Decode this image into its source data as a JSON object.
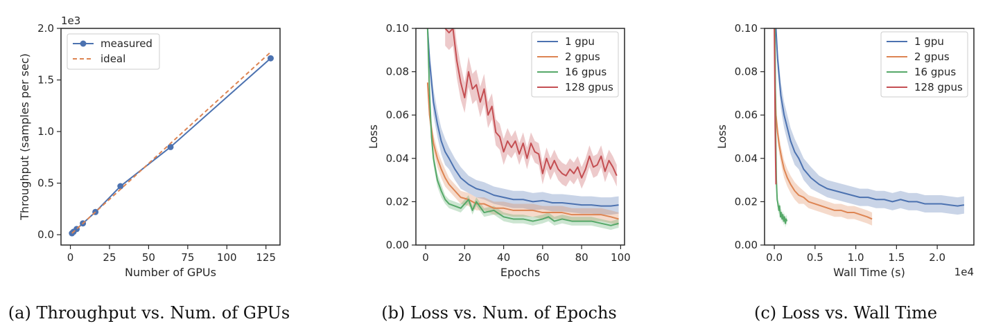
{
  "chart_data": [
    {
      "type": "line",
      "caption": "(a) Throughput vs. Num. of GPUs",
      "xlabel": "Number of GPUs",
      "ylabel": "Throughput (samples per sec)",
      "y_offset_label": "1e3",
      "xlim": [
        -6,
        134
      ],
      "ylim": [
        -0.1,
        2.0
      ],
      "xticks": [
        0,
        25,
        50,
        75,
        100,
        125
      ],
      "yticks": [
        0.0,
        0.5,
        1.0,
        1.5,
        2.0
      ],
      "ytick_labels": [
        "0.0",
        "0.5",
        "1.0",
        "1.5",
        "2.0"
      ],
      "legend_position": "top-left",
      "series": [
        {
          "name": "measured",
          "color": "#4c72b0",
          "style": "solid",
          "markers": true,
          "x": [
            1,
            2,
            4,
            8,
            16,
            32,
            64,
            128
          ],
          "y": [
            0.014,
            0.028,
            0.055,
            0.11,
            0.22,
            0.47,
            0.85,
            1.71
          ]
        },
        {
          "name": "ideal",
          "color": "#dd8452",
          "style": "dashed",
          "markers": false,
          "x": [
            1,
            2,
            4,
            8,
            16,
            32,
            64,
            128
          ],
          "y": [
            0.0138,
            0.0276,
            0.0552,
            0.11,
            0.22,
            0.44,
            0.885,
            1.77
          ]
        }
      ]
    },
    {
      "type": "line",
      "caption": "(b) Loss vs. Num. of Epochs",
      "xlabel": "Epochs",
      "ylabel": "Loss",
      "xlim": [
        -5,
        102
      ],
      "ylim": [
        0.0,
        0.1
      ],
      "xticks": [
        0,
        20,
        40,
        60,
        80,
        100
      ],
      "yticks": [
        0.0,
        0.02,
        0.04,
        0.06,
        0.08,
        0.1
      ],
      "ytick_labels": [
        "0.00",
        "0.02",
        "0.04",
        "0.06",
        "0.08",
        "0.10"
      ],
      "legend_position": "top-right",
      "series": [
        {
          "name": "1 gpu",
          "color": "#4c72b0",
          "x": [
            1,
            2,
            4,
            6,
            8,
            10,
            12,
            15,
            18,
            22,
            26,
            30,
            35,
            40,
            45,
            50,
            55,
            60,
            65,
            70,
            75,
            80,
            85,
            90,
            95,
            99
          ],
          "y": [
            0.1,
            0.085,
            0.066,
            0.056,
            0.048,
            0.043,
            0.04,
            0.035,
            0.031,
            0.028,
            0.026,
            0.025,
            0.023,
            0.022,
            0.021,
            0.021,
            0.02,
            0.0205,
            0.0195,
            0.0195,
            0.019,
            0.0185,
            0.0185,
            0.018,
            0.018,
            0.0185
          ],
          "band": [
            0.004,
            0.005,
            0.006,
            0.006,
            0.006,
            0.006,
            0.005,
            0.005,
            0.005,
            0.004,
            0.004,
            0.004,
            0.004,
            0.004,
            0.004,
            0.004,
            0.004,
            0.004,
            0.004,
            0.004,
            0.004,
            0.004,
            0.004,
            0.004,
            0.004,
            0.004
          ]
        },
        {
          "name": "2 gpus",
          "color": "#dd8452",
          "x": [
            1,
            2,
            4,
            6,
            8,
            10,
            12,
            15,
            18,
            22,
            26,
            30,
            35,
            40,
            45,
            50,
            55,
            60,
            65,
            70,
            75,
            80,
            85,
            90,
            95,
            99
          ],
          "y": [
            0.075,
            0.06,
            0.047,
            0.04,
            0.035,
            0.031,
            0.028,
            0.025,
            0.022,
            0.021,
            0.019,
            0.019,
            0.017,
            0.017,
            0.016,
            0.016,
            0.016,
            0.015,
            0.015,
            0.015,
            0.014,
            0.014,
            0.014,
            0.014,
            0.013,
            0.012
          ],
          "band": [
            0.004,
            0.004,
            0.004,
            0.004,
            0.004,
            0.004,
            0.003,
            0.003,
            0.003,
            0.003,
            0.003,
            0.003,
            0.003,
            0.003,
            0.003,
            0.003,
            0.003,
            0.003,
            0.003,
            0.003,
            0.003,
            0.003,
            0.003,
            0.003,
            0.003,
            0.003
          ]
        },
        {
          "name": "16 gpus",
          "color": "#55a868",
          "x": [
            1,
            2,
            3,
            4,
            6,
            8,
            10,
            12,
            15,
            18,
            20,
            22,
            24,
            26,
            30,
            35,
            40,
            45,
            50,
            55,
            60,
            63,
            66,
            70,
            75,
            80,
            85,
            90,
            95,
            99
          ],
          "y": [
            0.1,
            0.07,
            0.05,
            0.04,
            0.03,
            0.025,
            0.021,
            0.019,
            0.018,
            0.017,
            0.019,
            0.021,
            0.016,
            0.02,
            0.015,
            0.016,
            0.013,
            0.012,
            0.012,
            0.011,
            0.012,
            0.013,
            0.011,
            0.012,
            0.011,
            0.011,
            0.011,
            0.01,
            0.009,
            0.01
          ],
          "band": [
            0.004,
            0.004,
            0.003,
            0.003,
            0.003,
            0.003,
            0.002,
            0.002,
            0.002,
            0.002,
            0.002,
            0.002,
            0.002,
            0.002,
            0.002,
            0.002,
            0.002,
            0.002,
            0.002,
            0.002,
            0.002,
            0.002,
            0.002,
            0.002,
            0.002,
            0.002,
            0.002,
            0.002,
            0.002,
            0.002
          ]
        },
        {
          "name": "128 gpus",
          "color": "#c44e52",
          "x": [
            10,
            12,
            14,
            16,
            18,
            20,
            22,
            24,
            26,
            28,
            30,
            32,
            34,
            36,
            38,
            40,
            42,
            44,
            46,
            48,
            50,
            52,
            54,
            56,
            58,
            60,
            62,
            64,
            66,
            68,
            70,
            72,
            74,
            76,
            78,
            80,
            82,
            84,
            86,
            88,
            90,
            92,
            94,
            96,
            98
          ],
          "y": [
            0.1,
            0.098,
            0.1,
            0.085,
            0.075,
            0.068,
            0.08,
            0.072,
            0.074,
            0.066,
            0.072,
            0.06,
            0.064,
            0.052,
            0.05,
            0.043,
            0.048,
            0.045,
            0.048,
            0.042,
            0.047,
            0.04,
            0.047,
            0.043,
            0.042,
            0.033,
            0.04,
            0.035,
            0.039,
            0.035,
            0.033,
            0.032,
            0.035,
            0.033,
            0.036,
            0.031,
            0.035,
            0.041,
            0.036,
            0.037,
            0.041,
            0.034,
            0.039,
            0.036,
            0.032
          ],
          "band": [
            0.008,
            0.008,
            0.008,
            0.008,
            0.008,
            0.007,
            0.007,
            0.007,
            0.007,
            0.007,
            0.007,
            0.006,
            0.006,
            0.006,
            0.006,
            0.006,
            0.006,
            0.005,
            0.005,
            0.005,
            0.005,
            0.005,
            0.005,
            0.005,
            0.005,
            0.005,
            0.005,
            0.005,
            0.005,
            0.005,
            0.005,
            0.005,
            0.005,
            0.005,
            0.005,
            0.005,
            0.005,
            0.005,
            0.005,
            0.005,
            0.005,
            0.005,
            0.005,
            0.005,
            0.005
          ]
        }
      ]
    },
    {
      "type": "line",
      "caption": "(c) Loss vs. Wall Time",
      "xlabel": "Wall Time (s)",
      "ylabel": "Loss",
      "x_offset_label": "1e4",
      "xlim": [
        -0.12,
        2.45
      ],
      "ylim": [
        0.0,
        0.1
      ],
      "xticks": [
        0.0,
        0.5,
        1.0,
        1.5,
        2.0
      ],
      "xtick_labels": [
        "0.0",
        "0.5",
        "1.0",
        "1.5",
        "2.0"
      ],
      "yticks": [
        0.0,
        0.02,
        0.04,
        0.06,
        0.08,
        0.1
      ],
      "ytick_labels": [
        "0.00",
        "0.02",
        "0.04",
        "0.06",
        "0.08",
        "0.10"
      ],
      "legend_position": "top-right",
      "series": [
        {
          "name": "1 gpu",
          "color": "#4c72b0",
          "x": [
            0.02,
            0.04,
            0.08,
            0.12,
            0.16,
            0.2,
            0.25,
            0.3,
            0.36,
            0.45,
            0.55,
            0.65,
            0.75,
            0.85,
            0.95,
            1.05,
            1.15,
            1.25,
            1.35,
            1.45,
            1.55,
            1.65,
            1.75,
            1.85,
            1.95,
            2.05,
            2.15,
            2.25,
            2.33
          ],
          "y": [
            0.1,
            0.086,
            0.069,
            0.06,
            0.054,
            0.048,
            0.043,
            0.04,
            0.035,
            0.031,
            0.028,
            0.026,
            0.025,
            0.024,
            0.023,
            0.022,
            0.022,
            0.021,
            0.021,
            0.02,
            0.021,
            0.02,
            0.02,
            0.019,
            0.019,
            0.019,
            0.0185,
            0.018,
            0.0185
          ],
          "band": [
            0.004,
            0.005,
            0.006,
            0.006,
            0.006,
            0.006,
            0.006,
            0.005,
            0.005,
            0.005,
            0.004,
            0.004,
            0.004,
            0.004,
            0.004,
            0.004,
            0.004,
            0.004,
            0.004,
            0.004,
            0.004,
            0.004,
            0.004,
            0.004,
            0.004,
            0.004,
            0.004,
            0.004,
            0.004
          ]
        },
        {
          "name": "2 gpus",
          "color": "#dd8452",
          "x": [
            0.01,
            0.02,
            0.04,
            0.06,
            0.09,
            0.12,
            0.16,
            0.2,
            0.25,
            0.3,
            0.36,
            0.42,
            0.5,
            0.58,
            0.66,
            0.74,
            0.82,
            0.9,
            0.98,
            1.06,
            1.14,
            1.2
          ],
          "y": [
            0.075,
            0.06,
            0.052,
            0.046,
            0.04,
            0.035,
            0.031,
            0.028,
            0.025,
            0.023,
            0.022,
            0.02,
            0.019,
            0.018,
            0.017,
            0.016,
            0.016,
            0.015,
            0.015,
            0.014,
            0.013,
            0.012
          ],
          "band": [
            0.004,
            0.004,
            0.004,
            0.004,
            0.004,
            0.004,
            0.004,
            0.004,
            0.004,
            0.004,
            0.003,
            0.003,
            0.003,
            0.003,
            0.003,
            0.003,
            0.003,
            0.003,
            0.003,
            0.003,
            0.003,
            0.003
          ]
        },
        {
          "name": "16 gpus",
          "color": "#55a868",
          "x": [
            0.008,
            0.015,
            0.025,
            0.035,
            0.045,
            0.055,
            0.065,
            0.075,
            0.085,
            0.095,
            0.105,
            0.115,
            0.125,
            0.135,
            0.145,
            0.155
          ],
          "y": [
            0.1,
            0.055,
            0.03,
            0.021,
            0.019,
            0.016,
            0.018,
            0.013,
            0.015,
            0.012,
            0.014,
            0.011,
            0.013,
            0.01,
            0.012,
            0.011
          ],
          "band": [
            0.003,
            0.003,
            0.003,
            0.003,
            0.002,
            0.002,
            0.002,
            0.002,
            0.002,
            0.002,
            0.002,
            0.002,
            0.002,
            0.002,
            0.002,
            0.002
          ]
        },
        {
          "name": "128 gpus",
          "color": "#c44e52",
          "x": [
            0.0,
            0.005,
            0.01,
            0.015,
            0.02
          ],
          "y": [
            0.1,
            0.08,
            0.055,
            0.04,
            0.028
          ],
          "band": [
            0.003,
            0.003,
            0.003,
            0.003,
            0.003
          ]
        }
      ]
    }
  ]
}
